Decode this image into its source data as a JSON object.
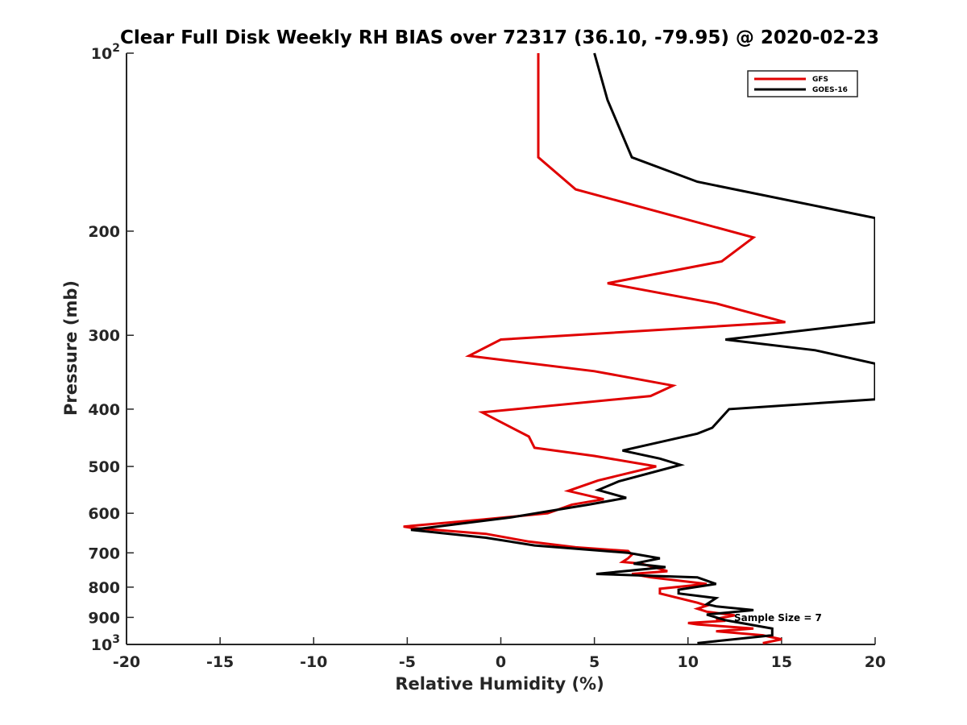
{
  "chart_data": {
    "type": "line",
    "title": "Clear Full Disk Weekly RH BIAS over 72317 (36.10, -79.95) @ 2020-02-23",
    "xlabel": "Relative Humidity (%)",
    "ylabel": "Pressure (mb)",
    "xlim": [
      -20,
      20
    ],
    "ylim": [
      100,
      1000
    ],
    "yscale": "log",
    "y_reversed": true,
    "grid": false,
    "legend_position": "top-right",
    "x_ticks": [
      "-20",
      "-15",
      "-10",
      "-5",
      "0",
      "5",
      "10",
      "15",
      "20"
    ],
    "y_ticks": [
      {
        "value": 100,
        "label": "10",
        "sup": "2"
      },
      {
        "value": 200,
        "label": "200",
        "sup": ""
      },
      {
        "value": 300,
        "label": "300",
        "sup": ""
      },
      {
        "value": 400,
        "label": "400",
        "sup": ""
      },
      {
        "value": 500,
        "label": "500",
        "sup": ""
      },
      {
        "value": 600,
        "label": "600",
        "sup": ""
      },
      {
        "value": 700,
        "label": "700",
        "sup": ""
      },
      {
        "value": 800,
        "label": "800",
        "sup": ""
      },
      {
        "value": 900,
        "label": "900",
        "sup": ""
      },
      {
        "value": 1000,
        "label": "10",
        "sup": "3"
      }
    ],
    "annotation": "Sample Size = 7",
    "series": [
      {
        "name": "GFS",
        "color": "#e00000",
        "points": [
          [
            2.0,
            100
          ],
          [
            2.0,
            150
          ],
          [
            4.0,
            170
          ],
          [
            13.5,
            205
          ],
          [
            11.8,
            225
          ],
          [
            5.7,
            245
          ],
          [
            11.5,
            265
          ],
          [
            15.2,
            285
          ],
          [
            0.0,
            305
          ],
          [
            -1.7,
            325
          ],
          [
            5.0,
            345
          ],
          [
            9.2,
            365
          ],
          [
            8.0,
            380
          ],
          [
            -1.0,
            405
          ],
          [
            1.5,
            445
          ],
          [
            1.8,
            465
          ],
          [
            5.0,
            480
          ],
          [
            8.3,
            500
          ],
          [
            5.2,
            528
          ],
          [
            3.6,
            550
          ],
          [
            5.5,
            568
          ],
          [
            3.8,
            580
          ],
          [
            2.5,
            600
          ],
          [
            -1.0,
            615
          ],
          [
            -5.2,
            632
          ],
          [
            -4.8,
            635
          ],
          [
            -0.8,
            650
          ],
          [
            1.5,
            670
          ],
          [
            4.0,
            685
          ],
          [
            6.8,
            695
          ],
          [
            7.0,
            705
          ],
          [
            6.8,
            715
          ],
          [
            6.5,
            725
          ],
          [
            7.5,
            730
          ],
          [
            8.5,
            745
          ],
          [
            8.9,
            752
          ],
          [
            7.0,
            760
          ],
          [
            8.0,
            770
          ],
          [
            11.0,
            790
          ],
          [
            8.5,
            805
          ],
          [
            8.5,
            820
          ],
          [
            10.5,
            850
          ],
          [
            11.0,
            860
          ],
          [
            10.5,
            870
          ],
          [
            11.0,
            880
          ],
          [
            12.5,
            893
          ],
          [
            11.5,
            905
          ],
          [
            12.0,
            912
          ],
          [
            10.0,
            920
          ],
          [
            10.5,
            925
          ],
          [
            13.5,
            940
          ],
          [
            11.5,
            950
          ],
          [
            14.0,
            965
          ],
          [
            15.0,
            980
          ],
          [
            14.0,
            995
          ]
        ]
      },
      {
        "name": "GOES-16",
        "color": "#000000",
        "points": [
          [
            5.0,
            100
          ],
          [
            5.7,
            120
          ],
          [
            7.0,
            150
          ],
          [
            10.5,
            165
          ],
          [
            20.0,
            190
          ],
          [
            20.0,
            285
          ],
          [
            12.0,
            305
          ],
          [
            16.8,
            318
          ],
          [
            20.0,
            335
          ],
          [
            20.0,
            385
          ],
          [
            12.2,
            400
          ],
          [
            11.3,
            430
          ],
          [
            10.5,
            440
          ],
          [
            6.5,
            470
          ],
          [
            8.5,
            485
          ],
          [
            9.6,
            497
          ],
          [
            6.3,
            530
          ],
          [
            5.2,
            548
          ],
          [
            6.7,
            565
          ],
          [
            4.7,
            580
          ],
          [
            0.5,
            610
          ],
          [
            -4.8,
            640
          ],
          [
            -0.8,
            660
          ],
          [
            1.8,
            680
          ],
          [
            6.8,
            700
          ],
          [
            8.5,
            715
          ],
          [
            7.1,
            730
          ],
          [
            8.8,
            740
          ],
          [
            5.1,
            760
          ],
          [
            10.5,
            770
          ],
          [
            11.5,
            790
          ],
          [
            9.5,
            808
          ],
          [
            9.5,
            820
          ],
          [
            11.5,
            835
          ],
          [
            11.0,
            855
          ],
          [
            11.5,
            862
          ],
          [
            13.5,
            875
          ],
          [
            11.0,
            890
          ],
          [
            12.0,
            910
          ],
          [
            14.5,
            940
          ],
          [
            14.5,
            965
          ],
          [
            10.5,
            995
          ]
        ]
      }
    ]
  }
}
